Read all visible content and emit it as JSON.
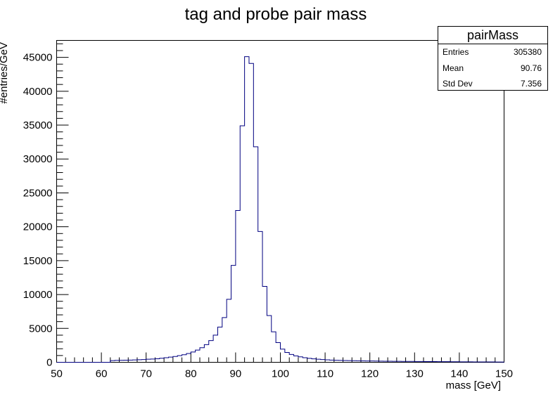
{
  "chart_data": {
    "type": "bar",
    "title": "tag and probe pair mass",
    "xlabel": "mass [GeV]",
    "ylabel": "#entries/GeV",
    "xlim": [
      50,
      150
    ],
    "ylim": [
      0,
      47500
    ],
    "bin_width": 1,
    "xticks": [
      "50",
      "60",
      "70",
      "80",
      "90",
      "100",
      "110",
      "120",
      "130",
      "140",
      "150"
    ],
    "yticks": [
      "0",
      "5000",
      "10000",
      "15000",
      "20000",
      "25000",
      "30000",
      "35000",
      "40000",
      "45000"
    ],
    "line_color": "#000080",
    "grid": false,
    "series": [
      {
        "x": [
          50,
          51,
          52,
          53,
          54,
          55,
          56,
          57,
          58,
          59,
          60,
          61,
          62,
          63,
          64,
          65,
          66,
          67,
          68,
          69,
          70,
          71,
          72,
          73,
          74,
          75,
          76,
          77,
          78,
          79,
          80,
          81,
          82,
          83,
          84,
          85,
          86,
          87,
          88,
          89,
          90,
          91,
          92,
          93,
          94,
          95,
          96,
          97,
          98,
          99,
          100,
          101,
          102,
          103,
          104,
          105,
          106,
          107,
          108,
          109,
          110,
          111,
          112,
          113,
          114,
          115,
          116,
          117,
          118,
          119,
          120,
          121,
          122,
          123,
          124,
          125,
          126,
          127,
          128,
          129,
          130,
          131,
          132,
          133,
          134,
          135,
          136,
          137,
          138,
          139,
          140,
          141,
          142,
          143,
          144,
          145,
          146,
          147,
          148,
          149
        ],
        "values": [
          0,
          0,
          0,
          0,
          0,
          0,
          0,
          0,
          0,
          0,
          0,
          0,
          250,
          280,
          300,
          310,
          330,
          350,
          380,
          400,
          450,
          480,
          520,
          600,
          680,
          760,
          860,
          980,
          1120,
          1300,
          1520,
          1800,
          2150,
          2600,
          3200,
          4000,
          5200,
          6600,
          9300,
          14300,
          22400,
          34900,
          45100,
          44100,
          31800,
          19300,
          11200,
          6900,
          4500,
          2900,
          1950,
          1450,
          1150,
          950,
          800,
          680,
          580,
          510,
          450,
          400,
          360,
          330,
          300,
          280,
          260,
          240,
          230,
          220,
          210,
          200,
          190,
          180,
          170,
          160,
          150,
          145,
          140,
          135,
          130,
          125,
          120,
          115,
          110,
          105,
          100,
          95,
          90,
          85,
          80,
          75,
          70,
          65,
          60,
          58,
          55,
          52,
          50,
          48,
          45,
          42
        ]
      }
    ],
    "stats": {
      "name": "pairMass",
      "rows": [
        {
          "label": "Entries",
          "value": "305380"
        },
        {
          "label": "Mean",
          "value": "90.76"
        },
        {
          "label": "Std Dev",
          "value": "7.356"
        }
      ]
    }
  }
}
